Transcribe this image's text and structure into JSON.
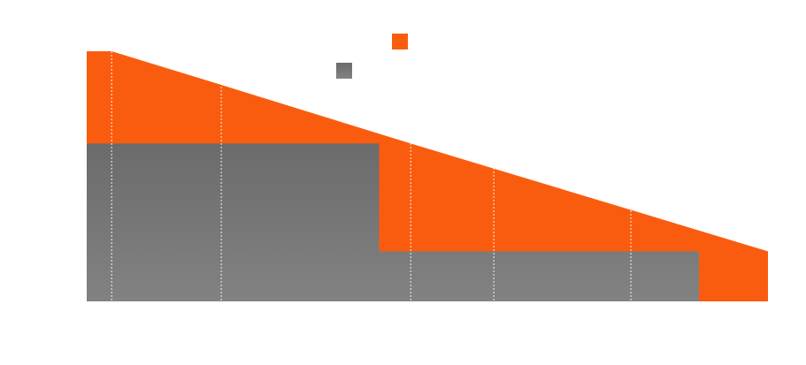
{
  "chart_data": {
    "type": "area",
    "title": "",
    "xlabel": "",
    "ylabel": "",
    "xlim": [
      0,
      820
    ],
    "ylim": [
      0,
      290
    ],
    "grid": "vertical dotted",
    "legend_position": "top-center",
    "series": [
      {
        "key": "orange",
        "color": "#fa5c0f",
        "x": [
          0,
          30,
          162,
          390,
          490,
          655,
          820
        ],
        "y": [
          290,
          290,
          251,
          183,
          154,
          106,
          58
        ]
      },
      {
        "key": "gray",
        "color": "#6b6b6b",
        "color_light": "#828282",
        "x": [
          0,
          352,
          352,
          737,
          737,
          820
        ],
        "y": [
          183,
          183,
          58,
          58,
          0,
          0
        ]
      }
    ],
    "gridlines_x": [
      30,
      162,
      390,
      490,
      655
    ]
  }
}
